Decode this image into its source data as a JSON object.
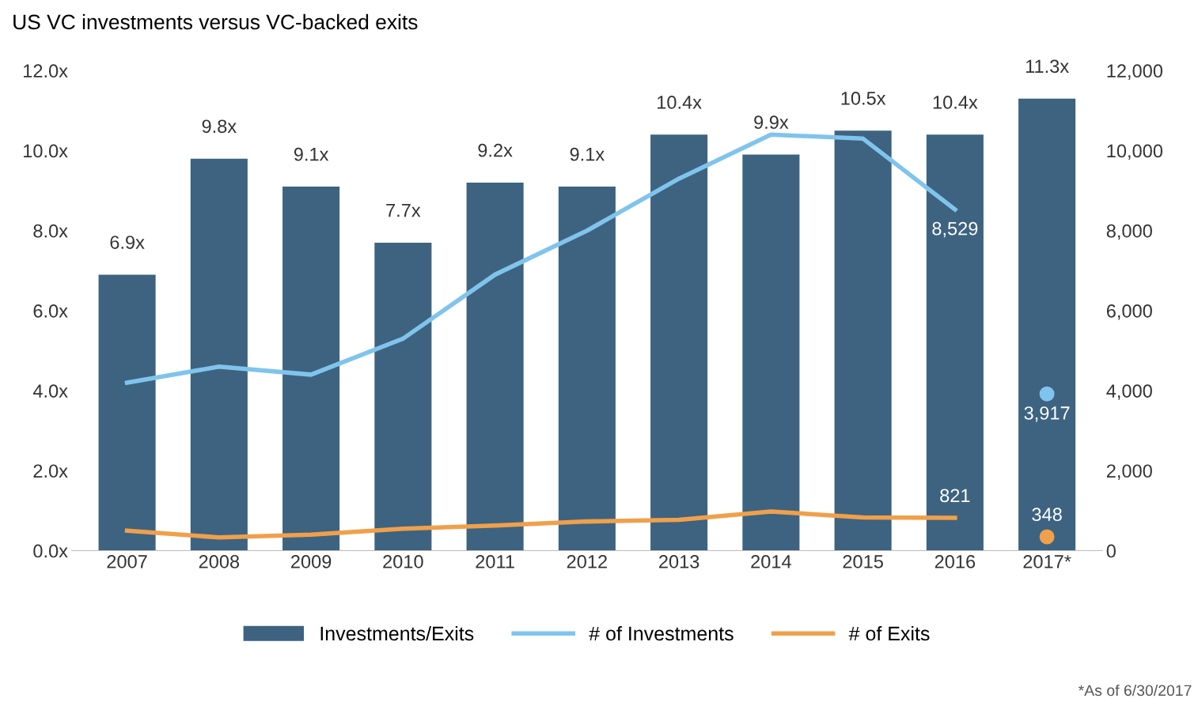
{
  "chart_data": {
    "type": "bar",
    "title": "US VC investments versus VC-backed exits",
    "categories": [
      "2007",
      "2008",
      "2009",
      "2010",
      "2011",
      "2012",
      "2013",
      "2014",
      "2015",
      "2016",
      "2017*"
    ],
    "series": [
      {
        "name": "Investments/Exits",
        "color": "#3d6380",
        "values": [
          6.9,
          9.8,
          9.1,
          7.7,
          9.2,
          9.1,
          10.4,
          9.9,
          10.5,
          10.4,
          11.3
        ],
        "value_labels": [
          "6.9x",
          "9.8x",
          "9.1x",
          "7.7x",
          "9.2x",
          "9.1x",
          "10.4x",
          "9.9x",
          "10.5x",
          "10.4x",
          "11.3x"
        ]
      },
      {
        "name": "# of Investments",
        "type": "line",
        "axis": "y2",
        "color": "#80c4ec",
        "values": [
          4200,
          4600,
          4400,
          5300,
          6900,
          8000,
          9300,
          10400,
          10300,
          8529,
          null
        ],
        "value_labels": [
          null,
          null,
          null,
          null,
          null,
          null,
          null,
          null,
          null,
          "8,529",
          null
        ]
      },
      {
        "name": "# of Exits",
        "type": "line",
        "axis": "y2",
        "color": "#f0a04b",
        "values": [
          500,
          330,
          400,
          550,
          630,
          730,
          770,
          980,
          830,
          821,
          null
        ],
        "value_labels": [
          null,
          null,
          null,
          null,
          null,
          null,
          null,
          null,
          null,
          "821",
          null
        ]
      },
      {
        "type": "scatter",
        "axis": "y2",
        "color": "#80c4ec",
        "values": [
          null,
          null,
          null,
          null,
          null,
          null,
          null,
          null,
          null,
          null,
          3917
        ],
        "value_labels": [
          null,
          null,
          null,
          null,
          null,
          null,
          null,
          null,
          null,
          null,
          "3,917"
        ]
      },
      {
        "type": "scatter",
        "axis": "y2",
        "color": "#f0a04b",
        "values": [
          null,
          null,
          null,
          null,
          null,
          null,
          null,
          null,
          null,
          null,
          348
        ],
        "value_labels": [
          null,
          null,
          null,
          null,
          null,
          null,
          null,
          null,
          null,
          null,
          "348"
        ]
      }
    ],
    "ylim": [
      0,
      12
    ],
    "yticks": [
      {
        "value": 0,
        "label": "0.0x"
      },
      {
        "value": 2,
        "label": "2.0x"
      },
      {
        "value": 4,
        "label": "4.0x"
      },
      {
        "value": 6,
        "label": "6.0x"
      },
      {
        "value": 8,
        "label": "8.0x"
      },
      {
        "value": 10,
        "label": "10.0x"
      },
      {
        "value": 12,
        "label": "12.0x"
      }
    ],
    "y2lim": [
      0,
      12000
    ],
    "y2ticks": [
      {
        "value": 0,
        "label": "0"
      },
      {
        "value": 2000,
        "label": "2,000"
      },
      {
        "value": 4000,
        "label": "4,000"
      },
      {
        "value": 6000,
        "label": "6,000"
      },
      {
        "value": 8000,
        "label": "8,000"
      },
      {
        "value": 10000,
        "label": "10,000"
      },
      {
        "value": 12000,
        "label": "12,000"
      }
    ],
    "grid": false,
    "legend": "bottom",
    "annotations": [
      "*As of 6/30/2017"
    ]
  }
}
